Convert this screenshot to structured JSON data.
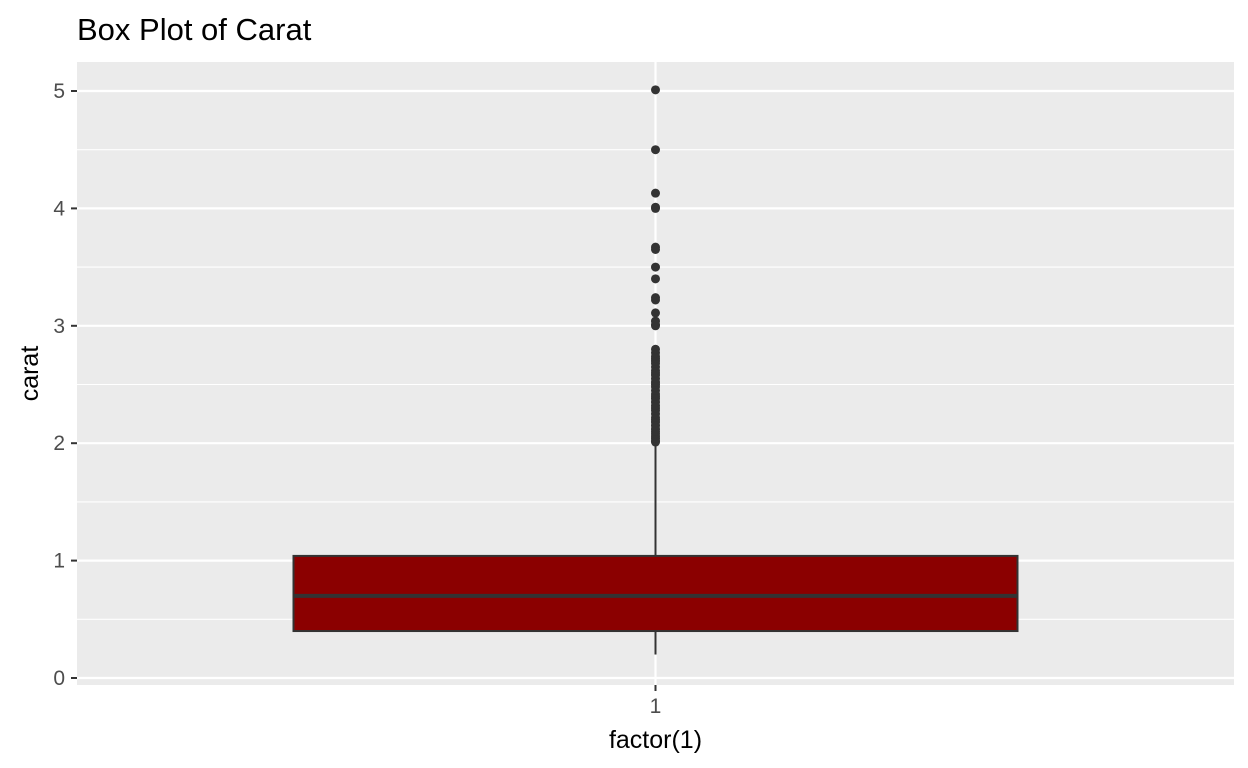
{
  "chart_data": {
    "type": "box",
    "title": "Box Plot of Carat",
    "xlabel": "factor(1)",
    "ylabel": "carat",
    "categories": [
      "1"
    ],
    "ylim": [
      0,
      5.2
    ],
    "y_ticks": [
      0,
      1,
      2,
      3,
      4,
      5
    ],
    "grid": true,
    "legend": "none",
    "box": {
      "category": "1",
      "min": 0.2,
      "q1": 0.4,
      "median": 0.7,
      "q3": 1.04,
      "whisker_high": 2.0,
      "outliers": [
        2.01,
        2.02,
        2.04,
        2.06,
        2.08,
        2.1,
        2.12,
        2.15,
        2.18,
        2.2,
        2.22,
        2.25,
        2.28,
        2.3,
        2.32,
        2.35,
        2.38,
        2.4,
        2.42,
        2.45,
        2.48,
        2.5,
        2.52,
        2.55,
        2.58,
        2.6,
        2.62,
        2.65,
        2.68,
        2.7,
        2.72,
        2.74,
        2.77,
        2.8,
        3.0,
        3.01,
        3.04,
        3.11,
        3.22,
        3.24,
        3.4,
        3.5,
        3.65,
        3.67,
        4.0,
        4.01,
        4.13,
        4.5,
        5.01
      ]
    },
    "colors": {
      "panel": "#ebebeb",
      "grid": "#ffffff",
      "box_fill": "#8b0000",
      "box_line": "#333333",
      "outlier": "#333333",
      "axis_text": "#4d4d4d",
      "tick": "#333333"
    }
  }
}
